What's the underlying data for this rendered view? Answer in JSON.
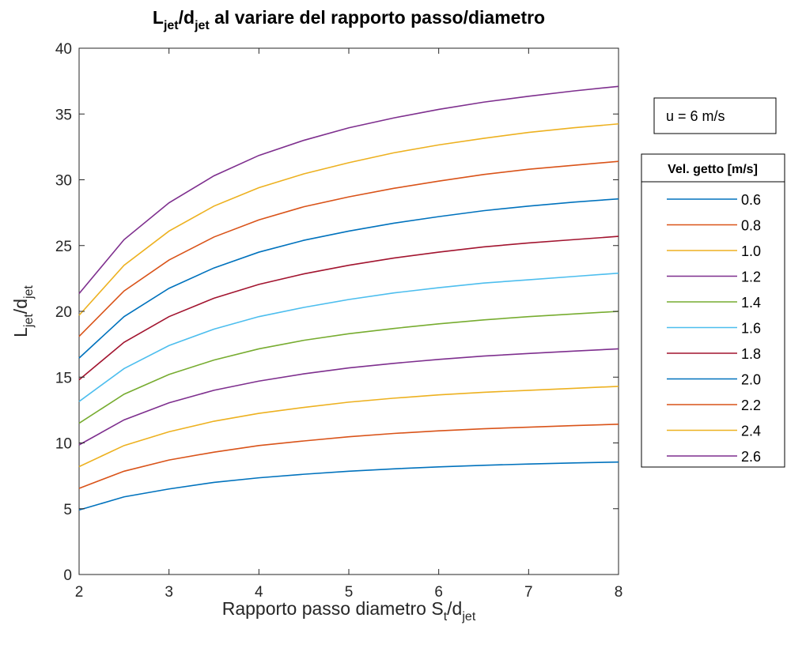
{
  "chart_data": {
    "type": "line",
    "title": {
      "base1": "L",
      "sub1": "jet",
      "slash": "/",
      "base2": "d",
      "sub2": "jet",
      "rest": " al variare del rapporto passo/diametro"
    },
    "xlabel": {
      "base": "Rapporto passo diametro S",
      "sub1": "t",
      "mid": "/d",
      "sub2": "jet"
    },
    "ylabel": {
      "base1": "L",
      "sub1": "jet",
      "mid": "/d",
      "sub2": "jet"
    },
    "xlim": [
      2,
      8
    ],
    "ylim": [
      0,
      40
    ],
    "x_ticks": [
      "2",
      "3",
      "4",
      "5",
      "6",
      "7",
      "8"
    ],
    "y_ticks": [
      "0",
      "5",
      "10",
      "15",
      "20",
      "25",
      "30",
      "35",
      "40"
    ],
    "grid": false,
    "x": [
      2,
      2.5,
      3,
      3.5,
      4,
      4.5,
      5,
      5.5,
      6,
      6.5,
      7,
      7.5,
      8
    ],
    "annotation": "u = 6 m/s",
    "legend": {
      "title": "Vel. getto [m/s]",
      "placement": "outside-right"
    },
    "series": [
      {
        "name": "0.6",
        "color": "#0072BD",
        "values": [
          4.9,
          5.9,
          6.5,
          7.0,
          7.35,
          7.62,
          7.85,
          8.03,
          8.18,
          8.3,
          8.4,
          8.48,
          8.55
        ]
      },
      {
        "name": "0.8",
        "color": "#D95319",
        "values": [
          6.55,
          7.85,
          8.7,
          9.3,
          9.8,
          10.15,
          10.47,
          10.72,
          10.92,
          11.08,
          11.2,
          11.32,
          11.42
        ]
      },
      {
        "name": "1.0",
        "color": "#EDB120",
        "values": [
          8.2,
          9.8,
          10.85,
          11.65,
          12.25,
          12.7,
          13.1,
          13.4,
          13.65,
          13.85,
          14.0,
          14.15,
          14.3
        ]
      },
      {
        "name": "1.2",
        "color": "#7E2F8E",
        "values": [
          9.85,
          11.75,
          13.05,
          14.0,
          14.7,
          15.25,
          15.7,
          16.05,
          16.35,
          16.6,
          16.8,
          16.98,
          17.15
        ]
      },
      {
        "name": "1.4",
        "color": "#77AC30",
        "values": [
          11.5,
          13.7,
          15.2,
          16.3,
          17.15,
          17.8,
          18.3,
          18.7,
          19.05,
          19.35,
          19.6,
          19.8,
          20.0
        ]
      },
      {
        "name": "1.6",
        "color": "#4DBEEE",
        "values": [
          13.15,
          15.65,
          17.4,
          18.65,
          19.6,
          20.3,
          20.9,
          21.4,
          21.8,
          22.15,
          22.4,
          22.65,
          22.9
        ]
      },
      {
        "name": "1.8",
        "color": "#A2142F",
        "values": [
          14.8,
          17.65,
          19.6,
          21.0,
          22.05,
          22.85,
          23.5,
          24.05,
          24.5,
          24.9,
          25.2,
          25.45,
          25.7
        ]
      },
      {
        "name": "2.0",
        "color": "#0072BD",
        "values": [
          16.45,
          19.6,
          21.75,
          23.3,
          24.5,
          25.4,
          26.1,
          26.7,
          27.2,
          27.65,
          28.0,
          28.3,
          28.55
        ]
      },
      {
        "name": "2.2",
        "color": "#D95319",
        "values": [
          18.1,
          21.55,
          23.9,
          25.65,
          26.95,
          27.95,
          28.7,
          29.35,
          29.9,
          30.4,
          30.8,
          31.1,
          31.4
        ]
      },
      {
        "name": "2.4",
        "color": "#EDB120",
        "values": [
          19.7,
          23.5,
          26.1,
          28.0,
          29.4,
          30.45,
          31.3,
          32.05,
          32.65,
          33.15,
          33.6,
          33.95,
          34.25
        ]
      },
      {
        "name": "2.6",
        "color": "#7E2F8E",
        "values": [
          21.35,
          25.45,
          28.25,
          30.3,
          31.85,
          33.0,
          33.95,
          34.7,
          35.35,
          35.9,
          36.35,
          36.75,
          37.1
        ]
      }
    ]
  }
}
